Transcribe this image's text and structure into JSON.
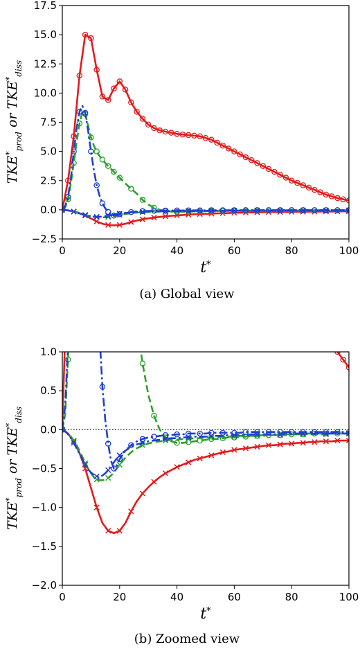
{
  "chart_data": [
    {
      "type": "line",
      "caption": "(a) Global view",
      "xlabel": "t*",
      "ylabel": "TKE*prod or TKE*diss",
      "xlim": [
        0,
        100
      ],
      "ylim": [
        -2.5,
        17.5
      ],
      "xticks": [
        0,
        20,
        40,
        60,
        80,
        100
      ],
      "yticks": [
        -2.5,
        0.0,
        2.5,
        5.0,
        7.5,
        10.0,
        12.5,
        15.0,
        17.5
      ],
      "xtick_labels": [
        "0",
        "20",
        "40",
        "60",
        "80",
        "100"
      ],
      "ytick_labels": [
        "−2.5",
        "0.0",
        "2.5",
        "5.0",
        "7.5",
        "10.0",
        "12.5",
        "15.0",
        "17.5"
      ],
      "series": [
        {
          "color": "#e41a1c",
          "line": "solid",
          "marker": "circle",
          "markevery": 1,
          "x": [
            0,
            2,
            4,
            6,
            8,
            10,
            12,
            14,
            16,
            18,
            20,
            22,
            24,
            26,
            28,
            30,
            32,
            34,
            36,
            38,
            40,
            42,
            44,
            46,
            48,
            50,
            52,
            54,
            56,
            58,
            60,
            62,
            64,
            66,
            68,
            70,
            72,
            74,
            76,
            78,
            80,
            82,
            84,
            86,
            88,
            90,
            92,
            94,
            96,
            98,
            100
          ],
          "y": [
            0.0,
            2.5,
            6.3,
            11.5,
            15.0,
            14.7,
            12.0,
            9.7,
            9.4,
            10.4,
            11.0,
            10.3,
            9.2,
            8.4,
            7.8,
            7.3,
            7.0,
            6.8,
            6.7,
            6.6,
            6.5,
            6.45,
            6.4,
            6.35,
            6.3,
            6.15,
            6.0,
            5.75,
            5.5,
            5.25,
            5.0,
            4.75,
            4.5,
            4.25,
            4.0,
            3.75,
            3.5,
            3.25,
            3.0,
            2.75,
            2.5,
            2.3,
            2.1,
            1.9,
            1.7,
            1.5,
            1.3,
            1.15,
            1.0,
            0.9,
            0.8
          ]
        },
        {
          "color": "#e41a1c",
          "line": "solid",
          "marker": "x",
          "markevery": 2,
          "x": [
            0,
            2,
            4,
            6,
            8,
            10,
            12,
            14,
            16,
            18,
            20,
            22,
            24,
            26,
            28,
            30,
            32,
            34,
            36,
            38,
            40,
            42,
            44,
            46,
            48,
            50,
            52,
            54,
            56,
            58,
            60,
            62,
            64,
            66,
            68,
            70,
            72,
            74,
            76,
            78,
            80,
            82,
            84,
            86,
            88,
            90,
            92,
            94,
            96,
            98,
            100
          ],
          "y": [
            0.0,
            -0.05,
            -0.15,
            -0.3,
            -0.5,
            -0.75,
            -1.0,
            -1.2,
            -1.3,
            -1.33,
            -1.3,
            -1.2,
            -1.05,
            -0.92,
            -0.82,
            -0.74,
            -0.67,
            -0.61,
            -0.56,
            -0.52,
            -0.48,
            -0.45,
            -0.42,
            -0.39,
            -0.37,
            -0.35,
            -0.33,
            -0.31,
            -0.29,
            -0.28,
            -0.26,
            -0.25,
            -0.24,
            -0.23,
            -0.22,
            -0.21,
            -0.2,
            -0.2,
            -0.19,
            -0.18,
            -0.18,
            -0.17,
            -0.17,
            -0.16,
            -0.16,
            -0.15,
            -0.15,
            -0.15,
            -0.14,
            -0.14,
            -0.14
          ]
        },
        {
          "color": "#2ca02c",
          "line": "dashed",
          "marker": "circle",
          "markevery": 2,
          "x": [
            0,
            1,
            2,
            3,
            4,
            5,
            6,
            7,
            8,
            9,
            10,
            11,
            12,
            13,
            14,
            15,
            16,
            17,
            18,
            19,
            20,
            22,
            24,
            26,
            28,
            30,
            32,
            34,
            36,
            38,
            40,
            42,
            44,
            46,
            48,
            50,
            52,
            54,
            56,
            58,
            60,
            62,
            64,
            66,
            68,
            70,
            72,
            74,
            76,
            78,
            80,
            82,
            84,
            86,
            88,
            90,
            92,
            94,
            96,
            98,
            100
          ],
          "y": [
            0.0,
            0.2,
            0.9,
            2.3,
            4.0,
            5.8,
            7.4,
            8.4,
            8.2,
            7.2,
            6.2,
            5.5,
            5.0,
            4.6,
            4.3,
            4.0,
            3.75,
            3.5,
            3.25,
            3.0,
            2.75,
            2.25,
            1.8,
            1.38,
            0.85,
            0.45,
            0.18,
            0.0,
            -0.1,
            -0.15,
            -0.17,
            -0.17,
            -0.16,
            -0.15,
            -0.14,
            -0.13,
            -0.12,
            -0.12,
            -0.11,
            -0.1,
            -0.1,
            -0.09,
            -0.09,
            -0.08,
            -0.08,
            -0.08,
            -0.07,
            -0.07,
            -0.07,
            -0.06,
            -0.06,
            -0.06,
            -0.06,
            -0.05,
            -0.05,
            -0.05,
            -0.05,
            -0.05,
            -0.05,
            -0.05,
            -0.05
          ]
        },
        {
          "color": "#2ca02c",
          "line": "dashed",
          "marker": "x",
          "markevery": 4,
          "x": [
            0,
            1,
            2,
            3,
            4,
            5,
            6,
            7,
            8,
            9,
            10,
            11,
            12,
            13,
            14,
            15,
            16,
            17,
            18,
            19,
            20,
            22,
            24,
            26,
            28,
            30,
            32,
            34,
            36,
            38,
            40,
            42,
            44,
            46,
            48,
            50,
            52,
            54,
            56,
            58,
            60,
            62,
            64,
            66,
            68,
            70,
            72,
            74,
            76,
            78,
            80,
            82,
            84,
            86,
            88,
            90,
            92,
            94,
            96,
            98,
            100
          ],
          "y": [
            0.0,
            -0.02,
            -0.05,
            -0.09,
            -0.14,
            -0.2,
            -0.27,
            -0.35,
            -0.43,
            -0.5,
            -0.56,
            -0.61,
            -0.64,
            -0.65,
            -0.65,
            -0.64,
            -0.62,
            -0.59,
            -0.55,
            -0.5,
            -0.45,
            -0.36,
            -0.29,
            -0.24,
            -0.2,
            -0.18,
            -0.16,
            -0.15,
            -0.14,
            -0.13,
            -0.13,
            -0.12,
            -0.12,
            -0.11,
            -0.11,
            -0.1,
            -0.1,
            -0.1,
            -0.09,
            -0.09,
            -0.09,
            -0.08,
            -0.08,
            -0.08,
            -0.08,
            -0.07,
            -0.07,
            -0.07,
            -0.07,
            -0.07,
            -0.06,
            -0.06,
            -0.06,
            -0.06,
            -0.06,
            -0.06,
            -0.06,
            -0.05,
            -0.05,
            -0.05,
            -0.05
          ]
        },
        {
          "color": "#1f3fd0",
          "line": "dashdot",
          "marker": "circle",
          "markevery": 2,
          "x": [
            0,
            1,
            2,
            3,
            4,
            5,
            6,
            7,
            8,
            9,
            10,
            11,
            12,
            13,
            14,
            15,
            16,
            17,
            18,
            19,
            20,
            22,
            24,
            26,
            28,
            30,
            32,
            34,
            36,
            38,
            40,
            42,
            44,
            46,
            48,
            50,
            52,
            54,
            56,
            58,
            60,
            62,
            64,
            66,
            68,
            70,
            72,
            74,
            76,
            78,
            80,
            82,
            84,
            86,
            88,
            90,
            92,
            94,
            96,
            98,
            100
          ],
          "y": [
            0.0,
            0.3,
            1.1,
            2.7,
            5.0,
            7.0,
            8.4,
            8.9,
            8.3,
            6.8,
            5.0,
            3.4,
            2.1,
            1.2,
            0.55,
            0.12,
            -0.18,
            -0.4,
            -0.5,
            -0.46,
            -0.38,
            -0.27,
            -0.2,
            -0.15,
            -0.12,
            -0.1,
            -0.09,
            -0.08,
            -0.07,
            -0.07,
            -0.06,
            -0.06,
            -0.05,
            -0.05,
            -0.05,
            -0.05,
            -0.04,
            -0.04,
            -0.04,
            -0.04,
            -0.04,
            -0.04,
            -0.03,
            -0.03,
            -0.03,
            -0.03,
            -0.03,
            -0.03,
            -0.03,
            -0.03,
            -0.03,
            -0.03,
            -0.03,
            -0.03,
            -0.03,
            -0.03,
            -0.03,
            -0.03,
            -0.03,
            -0.03,
            -0.03
          ]
        },
        {
          "color": "#1f3fd0",
          "line": "dashdot",
          "marker": "x",
          "markevery": 4,
          "x": [
            0,
            1,
            2,
            3,
            4,
            5,
            6,
            7,
            8,
            9,
            10,
            11,
            12,
            13,
            14,
            15,
            16,
            17,
            18,
            19,
            20,
            22,
            24,
            26,
            28,
            30,
            32,
            34,
            36,
            38,
            40,
            42,
            44,
            46,
            48,
            50,
            52,
            54,
            56,
            58,
            60,
            62,
            64,
            66,
            68,
            70,
            72,
            74,
            76,
            78,
            80,
            82,
            84,
            86,
            88,
            90,
            92,
            94,
            96,
            98,
            100
          ],
          "y": [
            0.0,
            -0.02,
            -0.06,
            -0.11,
            -0.17,
            -0.24,
            -0.31,
            -0.38,
            -0.45,
            -0.51,
            -0.55,
            -0.58,
            -0.6,
            -0.6,
            -0.59,
            -0.56,
            -0.52,
            -0.47,
            -0.42,
            -0.37,
            -0.33,
            -0.27,
            -0.22,
            -0.19,
            -0.17,
            -0.15,
            -0.14,
            -0.13,
            -0.12,
            -0.11,
            -0.11,
            -0.1,
            -0.1,
            -0.09,
            -0.09,
            -0.09,
            -0.08,
            -0.08,
            -0.08,
            -0.07,
            -0.07,
            -0.07,
            -0.07,
            -0.06,
            -0.06,
            -0.06,
            -0.06,
            -0.06,
            -0.06,
            -0.05,
            -0.05,
            -0.05,
            -0.05,
            -0.05,
            -0.05,
            -0.05,
            -0.05,
            -0.05,
            -0.05,
            -0.05,
            -0.05
          ]
        }
      ]
    },
    {
      "type": "line",
      "caption": "(b) Zoomed view",
      "xlabel": "t*",
      "ylabel": "TKE*prod or TKE*diss",
      "xlim": [
        0,
        100
      ],
      "ylim": [
        -2.0,
        1.0
      ],
      "xticks": [
        0,
        20,
        40,
        60,
        80,
        100
      ],
      "yticks": [
        -2.0,
        -1.5,
        -1.0,
        -0.5,
        0.0,
        0.5,
        1.0
      ],
      "xtick_labels": [
        "0",
        "20",
        "40",
        "60",
        "80",
        "100"
      ],
      "ytick_labels": [
        "−2.0",
        "−1.5",
        "−1.0",
        "−0.5",
        "0.0",
        "0.5",
        "1.0"
      ],
      "reference_line": {
        "y": 0.0,
        "style": "dotted",
        "color": "#000000"
      },
      "same_series_as": 0
    }
  ]
}
